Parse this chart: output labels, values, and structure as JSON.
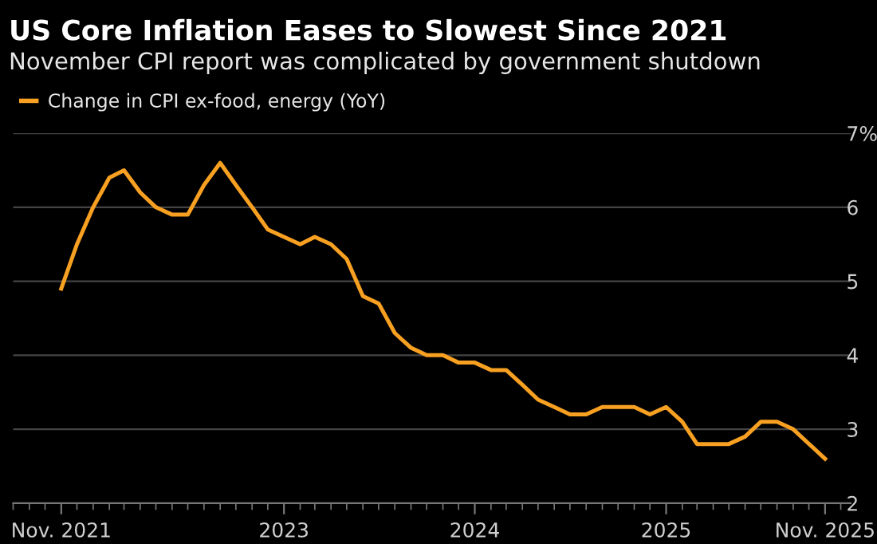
{
  "chart_data": {
    "type": "line",
    "title": "US Core Inflation Eases to Slowest Since 2021",
    "subtitle": "November CPI report was complicated by government shutdown",
    "x": [
      "2021-11",
      "2021-12",
      "2022-01",
      "2022-02",
      "2022-03",
      "2022-04",
      "2022-05",
      "2022-06",
      "2022-07",
      "2022-08",
      "2022-09",
      "2022-10",
      "2022-11",
      "2022-12",
      "2023-01",
      "2023-02",
      "2023-03",
      "2023-04",
      "2023-05",
      "2023-06",
      "2023-07",
      "2023-08",
      "2023-09",
      "2023-10",
      "2023-11",
      "2023-12",
      "2024-01",
      "2024-02",
      "2024-03",
      "2024-04",
      "2024-05",
      "2024-06",
      "2024-07",
      "2024-08",
      "2024-09",
      "2024-10",
      "2024-11",
      "2024-12",
      "2025-01",
      "2025-02",
      "2025-03",
      "2025-04",
      "2025-05",
      "2025-06",
      "2025-07",
      "2025-08",
      "2025-09",
      "2025-11"
    ],
    "series": [
      {
        "name": "Change in CPI ex-food, energy (YoY)",
        "color": "#f7a021",
        "values": [
          4.9,
          5.5,
          6.0,
          6.4,
          6.5,
          6.2,
          6.0,
          5.9,
          5.9,
          6.3,
          6.6,
          6.3,
          6.0,
          5.7,
          5.6,
          5.5,
          5.6,
          5.5,
          5.3,
          4.8,
          4.7,
          4.3,
          4.1,
          4.0,
          4.0,
          3.9,
          3.9,
          3.8,
          3.8,
          3.6,
          3.4,
          3.3,
          3.2,
          3.2,
          3.3,
          3.3,
          3.3,
          3.2,
          3.3,
          3.1,
          2.8,
          2.8,
          2.8,
          2.9,
          3.1,
          3.1,
          3.0,
          2.6
        ]
      }
    ],
    "xlim": [
      "2021-08-01",
      "2025-12-20"
    ],
    "xticks": [
      {
        "value": "2021-11",
        "label": "Nov. 2021"
      },
      {
        "value": "2023-01",
        "label": "2023"
      },
      {
        "value": "2024-01",
        "label": "2024"
      },
      {
        "value": "2025-01",
        "label": "2025"
      },
      {
        "value": "2025-11",
        "label": "Nov. 2025"
      }
    ],
    "ylim": [
      2,
      7
    ],
    "yticks": [
      2,
      3,
      4,
      5,
      6,
      {
        "value": 7,
        "label": "7%"
      }
    ],
    "grid": "y",
    "legend": "top left",
    "marker": "none",
    "line_style": "solid"
  }
}
